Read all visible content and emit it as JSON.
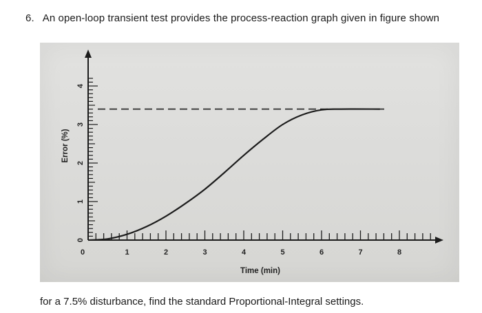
{
  "question": {
    "number": "6.",
    "text": "An open-loop transient test provides the process-reaction graph given in figure shown"
  },
  "footer": {
    "text": "for a 7.5% disturbance, find the standard Proportional-Integral settings."
  },
  "chart_data": {
    "type": "line",
    "xlabel": "Time (min)",
    "ylabel": "Error (%)",
    "xlim": [
      0,
      9
    ],
    "ylim": [
      0,
      4.5
    ],
    "x_ticks": [
      "0",
      "1",
      "2",
      "3",
      "4",
      "5",
      "6",
      "7",
      "8"
    ],
    "y_ticks": [
      "0",
      "1",
      "2",
      "3",
      "4"
    ],
    "asymptote": 3.4,
    "grid": false,
    "series": [
      {
        "x": [
          0,
          0.5,
          1,
          1.5,
          2,
          2.5,
          3,
          3.5,
          4,
          4.5,
          5,
          5.5,
          6,
          6.5,
          7.5
        ],
        "y": [
          0,
          0.03,
          0.15,
          0.35,
          0.62,
          0.95,
          1.32,
          1.75,
          2.2,
          2.62,
          3.0,
          3.25,
          3.38,
          3.4,
          3.4
        ]
      }
    ]
  }
}
